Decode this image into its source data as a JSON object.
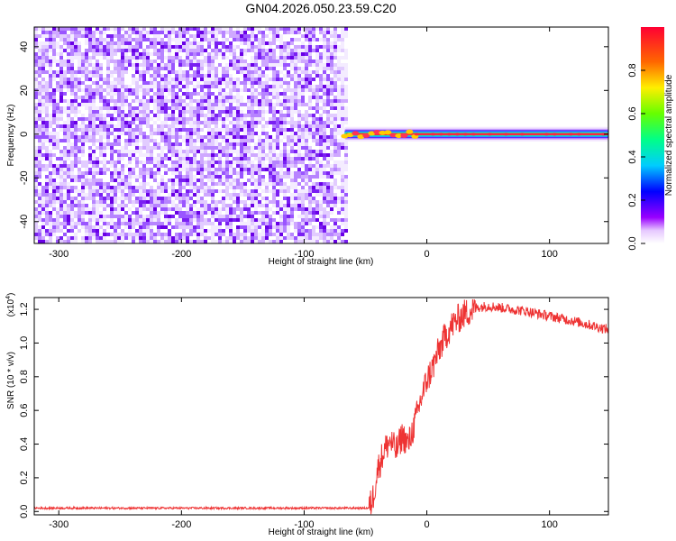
{
  "title": "GN04.2026.050.23.59.C20",
  "chart_data": [
    {
      "type": "heatmap",
      "panel": "top",
      "xlabel": "Height of straight line (km)",
      "ylabel": "Frequency (Hz)",
      "xlim": [
        -320,
        148
      ],
      "ylim": [
        -50,
        49
      ],
      "xticks": [
        "-300",
        "-200",
        "-100",
        "0",
        "100"
      ],
      "xtick_values": [
        -300,
        -200,
        -100,
        0,
        100
      ],
      "yticks": [
        "-40",
        "-20",
        "0",
        "20",
        "40"
      ],
      "ytick_values": [
        -40,
        -20,
        0,
        20,
        40
      ],
      "noise_region_x": [
        -320,
        -67
      ],
      "signal_start_x": -67,
      "signal_frequency_hz": 0,
      "colorbar": {
        "label": "Normalized spectral amplitude",
        "range": [
          0,
          1
        ],
        "ticks": [
          "0.0",
          "0.2",
          "0.4",
          "0.6",
          "0.8"
        ],
        "tick_values": [
          0.0,
          0.2,
          0.4,
          0.6,
          0.8
        ]
      }
    },
    {
      "type": "line",
      "panel": "bottom",
      "xlabel": "Height of straight line (km)",
      "ylabel": "SNR (10 * v/v)",
      "scale_label": "(x10",
      "scale_exponent": "4",
      "xlim": [
        -320,
        148
      ],
      "ylim": [
        -0.02,
        1.27
      ],
      "xticks": [
        "-300",
        "-200",
        "-100",
        "0",
        "100"
      ],
      "xtick_values": [
        -300,
        -200,
        -100,
        0,
        100
      ],
      "yticks": [
        "0.0",
        "0.2",
        "0.4",
        "0.6",
        "0.8",
        "1.0",
        "1.2"
      ],
      "ytick_values": [
        0.0,
        0.2,
        0.4,
        0.6,
        0.8,
        1.0,
        1.2
      ],
      "color": "#ee3333",
      "x": [
        -320,
        -300,
        -250,
        -200,
        -150,
        -100,
        -60,
        -47,
        -44,
        -40,
        -35,
        -30,
        -25,
        -20,
        -15,
        -10,
        -5,
        0,
        5,
        10,
        15,
        20,
        25,
        30,
        35,
        40,
        50,
        60,
        80,
        100,
        120,
        148
      ],
      "y": [
        0.02,
        0.02,
        0.02,
        0.02,
        0.02,
        0.02,
        0.02,
        0.02,
        0.08,
        0.25,
        0.36,
        0.42,
        0.36,
        0.45,
        0.4,
        0.52,
        0.66,
        0.78,
        0.86,
        0.96,
        1.04,
        1.1,
        1.14,
        1.17,
        1.19,
        1.21,
        1.22,
        1.21,
        1.19,
        1.16,
        1.13,
        1.08
      ]
    }
  ]
}
